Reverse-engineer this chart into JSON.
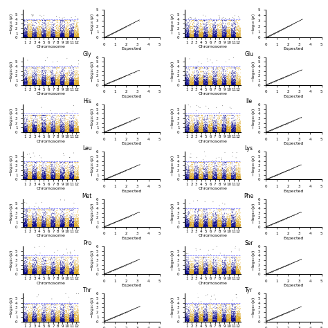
{
  "traits": [
    "Gly",
    "Glu",
    "His",
    "Ile",
    "Leu",
    "Lys",
    "Met",
    "Phe",
    "Pro",
    "Ser",
    "Thr",
    "Tyr"
  ],
  "n_rows": 7,
  "n_chromosomes": 12,
  "manhattan_ylim": [
    0,
    6
  ],
  "qq_xlim": [
    0,
    5
  ],
  "qq_ylim": [
    0,
    6
  ],
  "significance_line": 4.0,
  "color_even": "#DAA520",
  "color_odd": "#00008B",
  "color_sig_points": "#1a1a1a",
  "dashed_line_color": "#4444ff",
  "qq_line_color": "#888888",
  "qq_points_color": "#888888",
  "background_color": "#ffffff",
  "tick_fontsize": 4,
  "label_fontsize": 4.5,
  "title_fontsize": 5.5,
  "fig_bg": "#f0f0f0"
}
